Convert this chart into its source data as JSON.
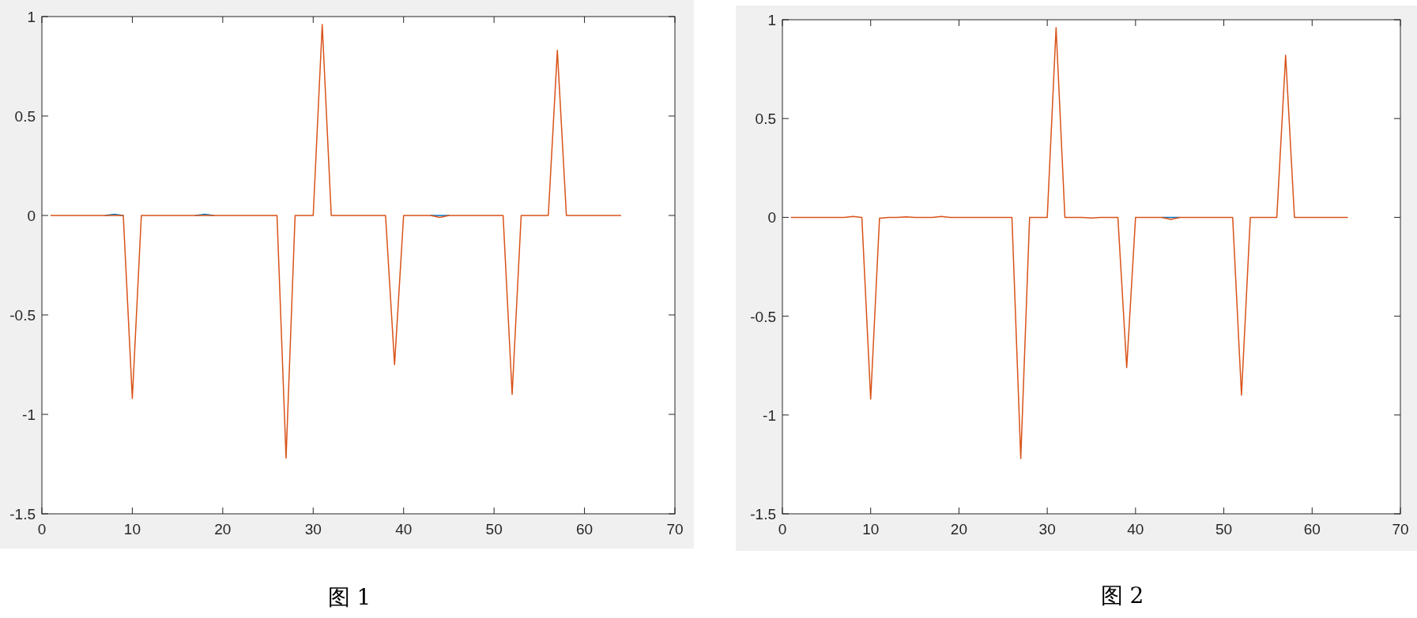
{
  "chart_data": [
    {
      "type": "line",
      "title": "图 1",
      "x": [
        1,
        2,
        3,
        4,
        5,
        6,
        7,
        8,
        9,
        10,
        11,
        12,
        13,
        14,
        15,
        16,
        17,
        18,
        19,
        20,
        21,
        22,
        23,
        24,
        25,
        26,
        27,
        28,
        29,
        30,
        31,
        32,
        33,
        34,
        35,
        36,
        37,
        38,
        39,
        40,
        41,
        42,
        43,
        44,
        45,
        46,
        47,
        48,
        49,
        50,
        51,
        52,
        53,
        54,
        55,
        56,
        57,
        58,
        59,
        60,
        61,
        62,
        63,
        64
      ],
      "xlim": [
        0,
        70
      ],
      "xticks": [
        0,
        10,
        20,
        30,
        40,
        50,
        60,
        70
      ],
      "ylim": [
        -1.5,
        1
      ],
      "yticks": [
        -1.5,
        -1,
        -0.5,
        0,
        0.5,
        1
      ],
      "series": [
        {
          "color": "#0072bd",
          "values": [
            null,
            null,
            null,
            null,
            null,
            null,
            0,
            0.006,
            0,
            null,
            null,
            null,
            null,
            null,
            null,
            null,
            0,
            0.006,
            0,
            null,
            null,
            null,
            null,
            null,
            null,
            null,
            null,
            null,
            null,
            null,
            null,
            null,
            null,
            null,
            null,
            null,
            null,
            null,
            null,
            null,
            null,
            null,
            0,
            0,
            0,
            null,
            null,
            null,
            null,
            null,
            null,
            null,
            null,
            null,
            null,
            null,
            null,
            null,
            null,
            null,
            null,
            null,
            null,
            null
          ]
        },
        {
          "color": "#d95319",
          "values": [
            0,
            0,
            0,
            0,
            0,
            0,
            0,
            0,
            0,
            -0.92,
            0,
            0,
            0,
            0,
            0,
            0,
            0,
            0,
            0,
            0,
            0,
            0,
            0,
            0,
            0,
            0,
            -1.22,
            0,
            0,
            0,
            0.96,
            0,
            0,
            0,
            0,
            0,
            0,
            0,
            -0.75,
            0,
            0,
            0,
            0,
            -0.01,
            0,
            0,
            0,
            0,
            0,
            0,
            0,
            -0.9,
            0,
            0,
            0,
            0,
            0.83,
            0,
            0,
            0,
            0,
            0,
            0,
            0
          ]
        }
      ]
    },
    {
      "type": "line",
      "title": "图 2",
      "x": [
        1,
        2,
        3,
        4,
        5,
        6,
        7,
        8,
        9,
        10,
        11,
        12,
        13,
        14,
        15,
        16,
        17,
        18,
        19,
        20,
        21,
        22,
        23,
        24,
        25,
        26,
        27,
        28,
        29,
        30,
        31,
        32,
        33,
        34,
        35,
        36,
        37,
        38,
        39,
        40,
        41,
        42,
        43,
        44,
        45,
        46,
        47,
        48,
        49,
        50,
        51,
        52,
        53,
        54,
        55,
        56,
        57,
        58,
        59,
        60,
        61,
        62,
        63,
        64
      ],
      "xlim": [
        0,
        70
      ],
      "xticks": [
        0,
        10,
        20,
        30,
        40,
        50,
        60,
        70
      ],
      "ylim": [
        -1.5,
        1
      ],
      "yticks": [
        -1.5,
        -1,
        -0.5,
        0,
        0.5,
        1
      ],
      "series": [
        {
          "color": "#0072bd",
          "values": [
            null,
            null,
            null,
            null,
            null,
            null,
            null,
            null,
            null,
            null,
            null,
            null,
            null,
            null,
            null,
            null,
            null,
            null,
            null,
            null,
            null,
            null,
            null,
            null,
            null,
            null,
            null,
            null,
            null,
            null,
            null,
            null,
            null,
            null,
            null,
            null,
            null,
            null,
            null,
            null,
            null,
            null,
            0,
            0,
            0,
            null,
            null,
            null,
            null,
            null,
            null,
            null,
            null,
            null,
            null,
            null,
            null,
            null,
            null,
            null,
            null,
            null,
            null,
            null
          ]
        },
        {
          "color": "#d95319",
          "values": [
            0,
            0,
            0,
            0,
            0,
            0,
            0,
            0.005,
            0,
            -0.92,
            -0.004,
            0,
            0,
            0.003,
            0,
            0,
            0,
            0.005,
            0,
            0,
            0,
            0,
            0,
            0,
            0,
            0,
            -1.22,
            0,
            0,
            0,
            0.96,
            0,
            0,
            0,
            -0.003,
            0,
            0,
            0,
            -0.76,
            0,
            0,
            0,
            0,
            -0.01,
            0,
            0,
            0,
            0,
            0,
            0,
            0,
            -0.9,
            0,
            0,
            0,
            0,
            0.82,
            0,
            0,
            0,
            0,
            0,
            0,
            0
          ]
        }
      ]
    }
  ]
}
